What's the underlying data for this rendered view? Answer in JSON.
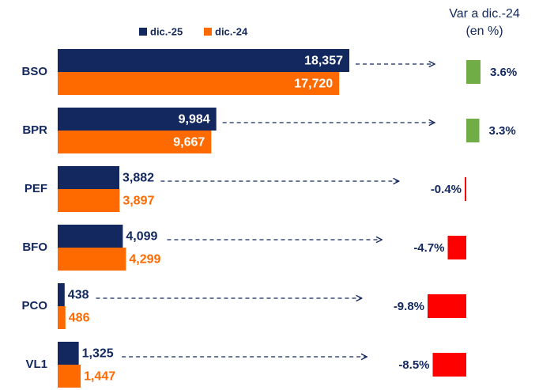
{
  "chart_data": {
    "type": "bar",
    "orientation": "horizontal",
    "categories": [
      "BSO",
      "BPR",
      "PEF",
      "BFO",
      "PCO",
      "VL1"
    ],
    "series": [
      {
        "name": "dic.-25",
        "color": "#13285e",
        "values": [
          18357,
          9984,
          3882,
          4099,
          438,
          1325
        ],
        "value_labels": [
          "18,357",
          "9,984",
          "3,882",
          "4,099",
          "438",
          "1,325"
        ]
      },
      {
        "name": "dic.-24",
        "color": "#ff6a00",
        "values": [
          17720,
          9667,
          3897,
          4299,
          486,
          1447
        ],
        "value_labels": [
          "17,720",
          "9,667",
          "3,897",
          "4,299",
          "486",
          "1,447"
        ]
      }
    ],
    "variation": {
      "title": [
        "Var a dic.-24",
        "(en %)"
      ],
      "values": [
        3.6,
        3.3,
        -0.4,
        -4.7,
        -9.8,
        -8.5
      ],
      "value_labels": [
        "3.6%",
        "3.3%",
        "-0.4%",
        "-4.7%",
        "-9.8%",
        "-8.5%"
      ],
      "positive_color": "#70ad47",
      "negative_color": "#ff0000"
    }
  }
}
